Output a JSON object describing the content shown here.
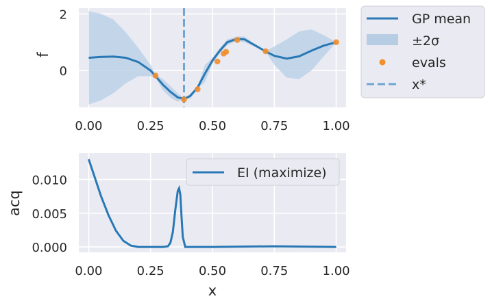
{
  "chart_data": [
    {
      "type": "line",
      "ylabel": "f",
      "xlabel": "",
      "xlim": [
        -0.04,
        1.04
      ],
      "ylim": [
        -1.3,
        2.2
      ],
      "xticks": [
        0.0,
        0.25,
        0.5,
        0.75,
        1.0
      ],
      "xtick_labels": [
        "0.00",
        "0.25",
        "0.50",
        "0.75",
        "1.00"
      ],
      "yticks": [
        0,
        2
      ],
      "ytick_labels": [
        "0",
        "2"
      ],
      "grid": true,
      "legend": {
        "placement": "outside-right-top",
        "entries": [
          "GP mean",
          "±2σ",
          "evals",
          "x*"
        ]
      },
      "colors": {
        "mean": "#2878b5",
        "band": "#b6cde4",
        "evals": "#f28e2b",
        "marker": "#6ea5d2",
        "bg": "#eaeaf2"
      },
      "series": [
        {
          "name": "GP mean",
          "x": [
            0.0,
            0.05,
            0.1,
            0.15,
            0.2,
            0.25,
            0.27,
            0.3,
            0.33,
            0.36,
            0.385,
            0.41,
            0.44,
            0.47,
            0.5,
            0.53,
            0.56,
            0.6,
            0.63,
            0.66,
            0.7,
            0.72,
            0.75,
            0.8,
            0.85,
            0.9,
            0.95,
            1.0
          ],
          "y": [
            0.45,
            0.48,
            0.49,
            0.45,
            0.3,
            0.0,
            -0.2,
            -0.5,
            -0.75,
            -0.95,
            -1.0,
            -0.9,
            -0.6,
            -0.1,
            0.35,
            0.7,
            1.0,
            1.12,
            1.1,
            0.95,
            0.75,
            0.65,
            0.52,
            0.42,
            0.5,
            0.7,
            0.88,
            1.0
          ]
        },
        {
          "name": "±2σ",
          "x": [
            0.0,
            0.05,
            0.1,
            0.15,
            0.2,
            0.25,
            0.27,
            0.3,
            0.33,
            0.36,
            0.385,
            0.41,
            0.44,
            0.47,
            0.5,
            0.53,
            0.56,
            0.6,
            0.63,
            0.66,
            0.7,
            0.72,
            0.75,
            0.8,
            0.85,
            0.9,
            0.95,
            1.0
          ],
          "upper": [
            2.1,
            2.0,
            1.8,
            1.35,
            0.8,
            0.2,
            -0.15,
            -0.3,
            -0.55,
            -0.8,
            -0.98,
            -0.82,
            -0.55,
            0.2,
            0.45,
            0.8,
            1.1,
            1.2,
            1.2,
            1.0,
            0.78,
            0.7,
            0.85,
            1.1,
            1.38,
            1.45,
            1.25,
            1.0
          ],
          "lower": [
            -1.2,
            -1.05,
            -0.8,
            -0.45,
            -0.2,
            -0.2,
            -0.25,
            -0.7,
            -0.95,
            -1.1,
            -1.02,
            -1.0,
            -0.65,
            -0.4,
            0.25,
            0.62,
            0.9,
            1.05,
            1.0,
            0.88,
            0.72,
            0.6,
            0.2,
            -0.25,
            -0.3,
            0.0,
            0.5,
            1.0
          ]
        },
        {
          "name": "evals",
          "type": "scatter",
          "x": [
            0.27,
            0.385,
            0.44,
            0.52,
            0.545,
            0.555,
            0.6,
            0.715,
            1.0
          ],
          "y": [
            -0.18,
            -1.02,
            -0.66,
            0.32,
            0.6,
            0.66,
            1.08,
            0.68,
            1.0
          ]
        },
        {
          "name": "x*",
          "type": "vline",
          "x": 0.385
        }
      ]
    },
    {
      "type": "line",
      "ylabel": "acq",
      "xlabel": "x",
      "xlim": [
        -0.04,
        1.04
      ],
      "ylim": [
        -0.0008,
        0.0139
      ],
      "xticks": [
        0.0,
        0.25,
        0.5,
        0.75,
        1.0
      ],
      "xtick_labels": [
        "0.00",
        "0.25",
        "0.50",
        "0.75",
        "1.00"
      ],
      "yticks": [
        0.0,
        0.005,
        0.01
      ],
      "ytick_labels": [
        "0.000",
        "0.005",
        "0.010"
      ],
      "grid": true,
      "legend": {
        "placement": "upper-right",
        "entries": [
          "EI (maximize)"
        ]
      },
      "colors": {
        "line": "#2878b5",
        "bg": "#eaeaf2"
      },
      "series": [
        {
          "name": "EI (maximize)",
          "x": [
            0.0,
            0.02,
            0.05,
            0.08,
            0.11,
            0.14,
            0.17,
            0.2,
            0.25,
            0.3,
            0.32,
            0.33,
            0.34,
            0.35,
            0.36,
            0.365,
            0.37,
            0.375,
            0.38,
            0.39,
            0.4,
            0.45,
            0.5,
            0.75,
            1.0
          ],
          "y": [
            0.013,
            0.0108,
            0.0075,
            0.0047,
            0.0024,
            0.0009,
            0.0002,
            0.0,
            0.0,
            0.0,
            0.0001,
            0.0006,
            0.0022,
            0.0055,
            0.0083,
            0.0087,
            0.0078,
            0.0045,
            0.0015,
            0.0,
            0.0,
            0.0,
            0.0,
            0.0001,
            0.0
          ]
        }
      ]
    }
  ]
}
